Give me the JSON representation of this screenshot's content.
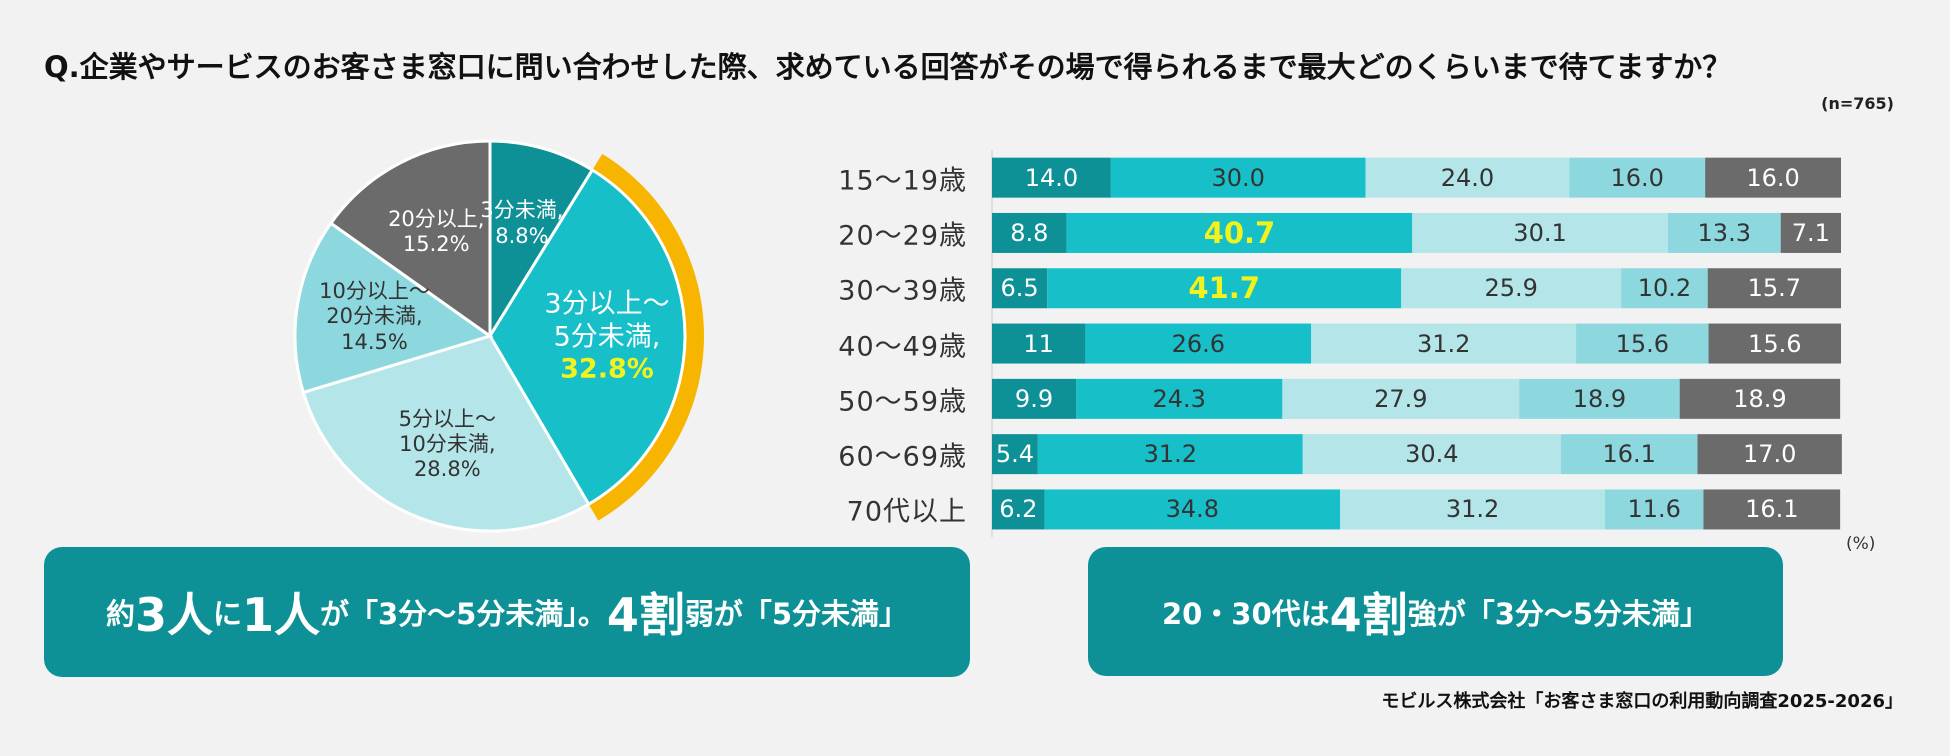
{
  "title": "Q.企業やサービスのお客さま窓口に問い合わせした際、求めている回答がその場で得られるまで最大どのくらいまで待てますか？",
  "note": "(n=765)",
  "source": "モビルス株式会社「お客さま窓口の利用動向調査2025-2026」",
  "callouts": [
    {
      "parts": [
        {
          "text": "約"
        },
        {
          "text": "3人",
          "em": true
        },
        {
          "text": "に"
        },
        {
          "text": "1人",
          "em": true
        },
        {
          "text": "が「3分〜5分未満」。"
        },
        {
          "text": "4割",
          "em": true
        },
        {
          "text": "弱が「5分未満」"
        }
      ]
    },
    {
      "parts": [
        {
          "text": "20・30代は"
        },
        {
          "text": "4割",
          "em": true
        },
        {
          "text": "強が「3分〜5分未満」"
        }
      ]
    }
  ],
  "chart_data": [
    {
      "type": "pie",
      "categories": [
        "3分未満,",
        "3分以上〜\n5分未満,",
        "5分以上〜\n10分未満,",
        "10分以上〜\n20分未満,",
        "20分以上,"
      ],
      "values": [
        8.8,
        32.8,
        28.8,
        14.5,
        15.2
      ],
      "value_labels": [
        "8.8%",
        "32.8%",
        "28.8%",
        "14.5%",
        "15.2%"
      ],
      "colors": [
        "#0e9196",
        "#17bfc9",
        "#b3e5e9",
        "#8dd8df",
        "#6b6b6b"
      ],
      "label_colors": [
        "#ffffff",
        "#ffffff",
        "#333333",
        "#333333",
        "#ffffff"
      ],
      "highlight_index": 1,
      "highlight_color": "#f7b500",
      "highlight_label_color": "#f2f21c"
    },
    {
      "type": "stacked_bar_horizontal",
      "categories": [
        "15〜19歳",
        "20〜29歳",
        "30〜39歳",
        "40〜49歳",
        "50〜59歳",
        "60〜69歳",
        "70代以上"
      ],
      "xlim": [
        0,
        100
      ],
      "unit": "(%)",
      "series": [
        {
          "color": "#0e9196",
          "label_color": "#ffffff",
          "values": [
            14.0,
            8.8,
            6.5,
            11,
            9.9,
            5.4,
            6.2
          ],
          "value_labels": [
            "14.0",
            "8.8",
            "6.5",
            "11",
            "9.9",
            "5.4",
            "6.2"
          ]
        },
        {
          "color": "#17bfc9",
          "label_color": "#333333",
          "values": [
            30.0,
            40.7,
            41.7,
            26.6,
            24.3,
            31.2,
            34.8
          ],
          "value_labels": [
            "30.0",
            "40.7",
            "41.7",
            "26.6",
            "24.3",
            "31.2",
            "34.8"
          ],
          "highlight_categories": [
            1,
            2
          ],
          "highlight_label_color": "#f2f21c"
        },
        {
          "color": "#b3e5e9",
          "label_color": "#333333",
          "values": [
            24.0,
            30.1,
            25.9,
            31.2,
            27.9,
            30.4,
            31.2
          ],
          "value_labels": [
            "24.0",
            "30.1",
            "25.9",
            "31.2",
            "27.9",
            "30.4",
            "31.2"
          ]
        },
        {
          "color": "#8dd8df",
          "label_color": "#333333",
          "values": [
            16.0,
            13.3,
            10.2,
            15.6,
            18.9,
            16.1,
            11.6
          ],
          "value_labels": [
            "16.0",
            "13.3",
            "10.2",
            "15.6",
            "18.9",
            "16.1",
            "11.6"
          ]
        },
        {
          "color": "#6b6b6b",
          "label_color": "#ffffff",
          "values": [
            16.0,
            7.1,
            15.7,
            15.6,
            18.9,
            17.0,
            16.1
          ],
          "value_labels": [
            "16.0",
            "7.1",
            "15.7",
            "15.6",
            "18.9",
            "17.0",
            "16.1"
          ]
        }
      ]
    }
  ]
}
